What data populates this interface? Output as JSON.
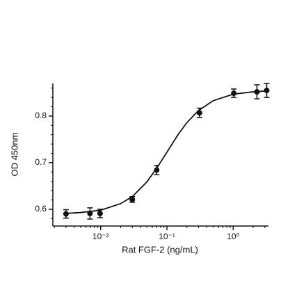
{
  "chart_data": {
    "type": "scatter",
    "x_label": "Rat FGF-2 (ng/mL)",
    "y_label": "OD 450nm",
    "log_x": true,
    "color": "#111111",
    "x": [
      0.003,
      0.0069,
      0.0098,
      0.03,
      0.07,
      0.31,
      1.02,
      2.28,
      3.2
    ],
    "values": [
      0.59,
      0.591,
      0.591,
      0.621,
      0.684,
      0.807,
      0.849,
      0.852,
      0.855
    ],
    "errors": [
      0.009,
      0.012,
      0.009,
      0.006,
      0.01,
      0.01,
      0.009,
      0.015,
      0.015
    ],
    "fit_x": [
      0.003,
      0.005,
      0.01,
      0.02,
      0.03,
      0.05,
      0.07,
      0.1,
      0.15,
      0.2,
      0.3,
      0.5,
      1,
      2,
      3.3
    ],
    "fit_values": [
      0.591,
      0.593,
      0.598,
      0.612,
      0.627,
      0.659,
      0.688,
      0.7225,
      0.762,
      0.786,
      0.812,
      0.833,
      0.847,
      0.852,
      0.854
    ],
    "xlim": [
      0.0019,
      3.4
    ],
    "ylim": [
      0.564,
      0.87
    ],
    "xticks": [
      {
        "value": 0.01,
        "label": "10⁻²"
      },
      {
        "value": 0.1,
        "label": "10⁻¹"
      },
      {
        "value": 1,
        "label": "10⁰"
      }
    ],
    "xticks_minor": [
      0.002,
      0.003,
      0.004,
      0.005,
      0.006,
      0.007,
      0.008,
      0.009,
      0.02,
      0.03,
      0.04,
      0.05,
      0.06,
      0.07,
      0.08,
      0.09,
      0.2,
      0.3,
      0.4,
      0.5,
      0.6,
      0.7,
      0.8,
      0.9,
      2,
      3
    ],
    "yticks": [
      0.6,
      0.7,
      0.8
    ],
    "yticks_minor": [
      0.58,
      0.62,
      0.64,
      0.66,
      0.68,
      0.72,
      0.74,
      0.76,
      0.78,
      0.82,
      0.84,
      0.86
    ]
  }
}
